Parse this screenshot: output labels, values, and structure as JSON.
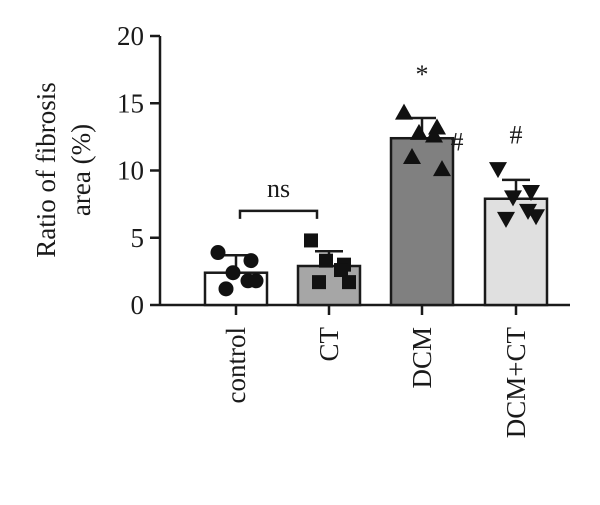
{
  "chart_data": {
    "type": "bar",
    "categories": [
      "control",
      "CT",
      "DCM",
      "DCM+CT"
    ],
    "ylabel_lines": [
      "Ratio of fibrosis",
      "area (%)"
    ],
    "xlabel": "",
    "ylim": [
      0,
      20
    ],
    "yticks": [
      0,
      5,
      10,
      15,
      20
    ],
    "grid": false,
    "series": [
      {
        "values": [
          2.4,
          2.9,
          12.4,
          7.9
        ],
        "errors": [
          1.3,
          1.1,
          1.5,
          1.4
        ],
        "colors": [
          "#ffffff",
          "#a6a6a6",
          "#808080",
          "#e0e0e0"
        ],
        "markers": [
          "circle",
          "square",
          "triangle-up",
          "triangle-down"
        ],
        "points": [
          [
            3.9,
            3.3,
            2.4,
            1.8,
            1.2,
            1.8
          ],
          [
            4.8,
            3.0,
            3.3,
            2.6,
            1.7,
            1.7
          ],
          [
            14.3,
            13.2,
            12.8,
            12.6,
            11.0,
            10.1
          ],
          [
            10.1,
            8.4,
            8.0,
            7.0,
            6.4,
            6.6
          ]
        ]
      }
    ],
    "annotations": [
      {
        "text": "ns",
        "type": "bracket",
        "from": "control",
        "to": "CT",
        "y": 7.0
      },
      {
        "text": "*",
        "category": "DCM",
        "y": 16.5
      },
      {
        "text": "#",
        "category": "DCM",
        "y": 11.5,
        "offset": "right"
      },
      {
        "text": "#",
        "category": "DCM+CT",
        "y": 12.0
      }
    ]
  }
}
